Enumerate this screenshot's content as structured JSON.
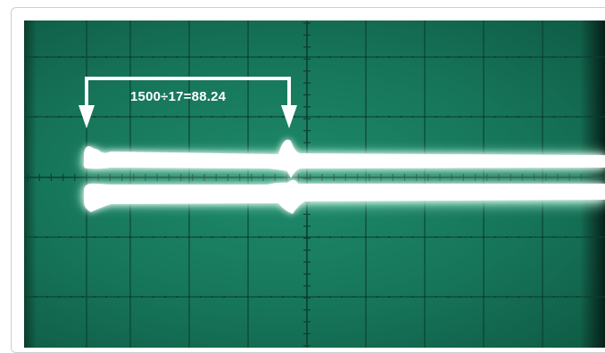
{
  "image": {
    "subject": "oscilloscope-screen",
    "colors": {
      "screen": "#167559",
      "grid": "#0d3f30",
      "trace": "#ffffff",
      "glow": "#c8ffe8"
    }
  },
  "annotation": {
    "label": "1500÷17=88.24"
  }
}
